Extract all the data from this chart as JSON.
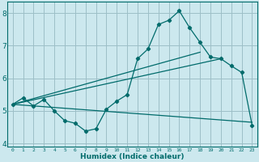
{
  "xlabel": "Humidex (Indice chaleur)",
  "background_color": "#cce8ee",
  "grid_color": "#9dbfc7",
  "line_color": "#006b6b",
  "xlim": [
    -0.5,
    23.5
  ],
  "ylim": [
    3.9,
    8.35
  ],
  "yticks": [
    4,
    5,
    6,
    7,
    8
  ],
  "xticks": [
    0,
    1,
    2,
    3,
    4,
    5,
    6,
    7,
    8,
    9,
    10,
    11,
    12,
    13,
    14,
    15,
    16,
    17,
    18,
    19,
    20,
    21,
    22,
    23
  ],
  "main_x": [
    0,
    1,
    2,
    3,
    4,
    5,
    6,
    7,
    8,
    9,
    10,
    11,
    12,
    13,
    14,
    15,
    16,
    17,
    18,
    19,
    20,
    21,
    22,
    23
  ],
  "main_y": [
    5.2,
    5.4,
    5.15,
    5.35,
    5.0,
    4.7,
    4.62,
    4.38,
    4.45,
    5.05,
    5.3,
    5.5,
    6.6,
    6.9,
    7.65,
    7.78,
    8.07,
    7.55,
    7.1,
    6.65,
    6.6,
    6.38,
    6.18,
    4.55
  ],
  "line1_x": [
    0,
    23
  ],
  "line1_y": [
    5.2,
    4.65
  ],
  "line2_x": [
    0,
    18
  ],
  "line2_y": [
    5.2,
    6.8
  ],
  "line3_x": [
    0,
    20
  ],
  "line3_y": [
    5.2,
    6.6
  ]
}
